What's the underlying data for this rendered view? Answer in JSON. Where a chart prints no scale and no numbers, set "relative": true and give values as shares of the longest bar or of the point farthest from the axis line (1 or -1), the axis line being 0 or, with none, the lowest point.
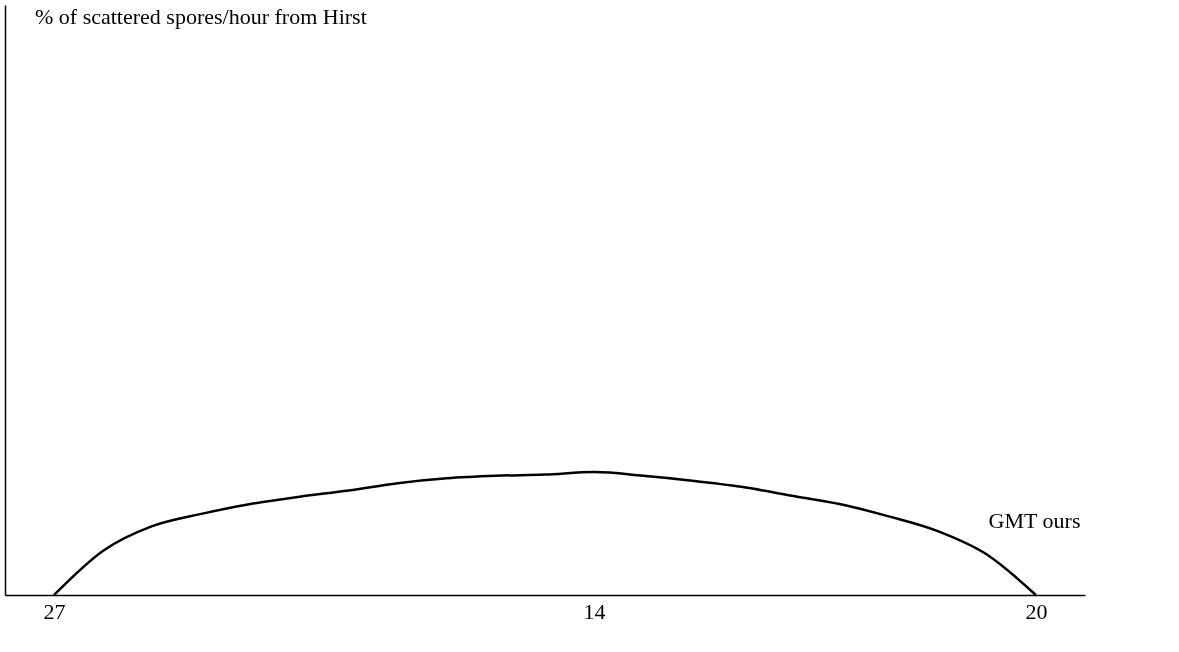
{
  "chart_data": {
    "type": "line",
    "relative": true,
    "annotations": [
      "% of scattered spores/hour from Hirst"
    ],
    "xlabel": "GMT ours",
    "categories": [
      "27",
      null,
      null,
      null,
      null,
      null,
      null,
      null,
      null,
      null,
      null,
      "14",
      null,
      null,
      null,
      null,
      null,
      null,
      null,
      null,
      "20"
    ],
    "series": [
      {
        "color": "#000000",
        "values": [
          0,
          0.36,
          0.56,
          0.66,
          0.74,
          0.8,
          0.85,
          0.91,
          0.95,
          0.97,
          0.98,
          1,
          0.97,
          0.93,
          0.88,
          0.81,
          0.74,
          0.64,
          0.52,
          0.33,
          0
        ]
      }
    ],
    "grid": false,
    "marker": "none",
    "line_style": "solid"
  }
}
